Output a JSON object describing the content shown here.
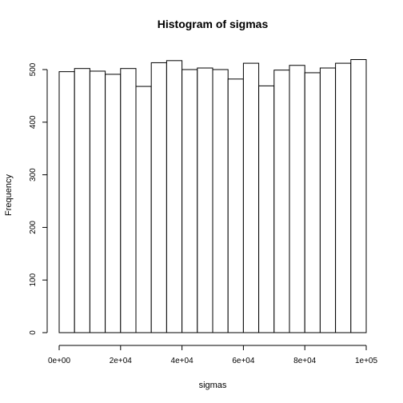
{
  "chart_data": {
    "type": "bar",
    "subtype": "histogram",
    "title": "Histogram of sigmas",
    "xlabel": "sigmas",
    "ylabel": "Frequency",
    "bin_edges": [
      0,
      5000,
      10000,
      15000,
      20000,
      25000,
      30000,
      35000,
      40000,
      45000,
      50000,
      55000,
      60000,
      65000,
      70000,
      75000,
      80000,
      85000,
      90000,
      95000,
      100000
    ],
    "values": [
      496,
      502,
      497,
      491,
      502,
      468,
      513,
      517,
      500,
      503,
      500,
      482,
      512,
      469,
      499,
      508,
      494,
      503,
      512,
      519
    ],
    "xlim": [
      0,
      100000
    ],
    "ylim": [
      0,
      520
    ],
    "x_ticks": [
      0,
      20000,
      40000,
      60000,
      80000,
      100000
    ],
    "x_tick_labels": [
      "0e+00",
      "2e+04",
      "4e+04",
      "6e+04",
      "8e+04",
      "1e+05"
    ],
    "y_ticks": [
      0,
      100,
      200,
      300,
      400,
      500
    ],
    "y_tick_labels": [
      "0",
      "100",
      "200",
      "300",
      "400",
      "500"
    ],
    "grid": false,
    "bar_fill": "#ffffff",
    "bar_stroke": "#000000"
  }
}
